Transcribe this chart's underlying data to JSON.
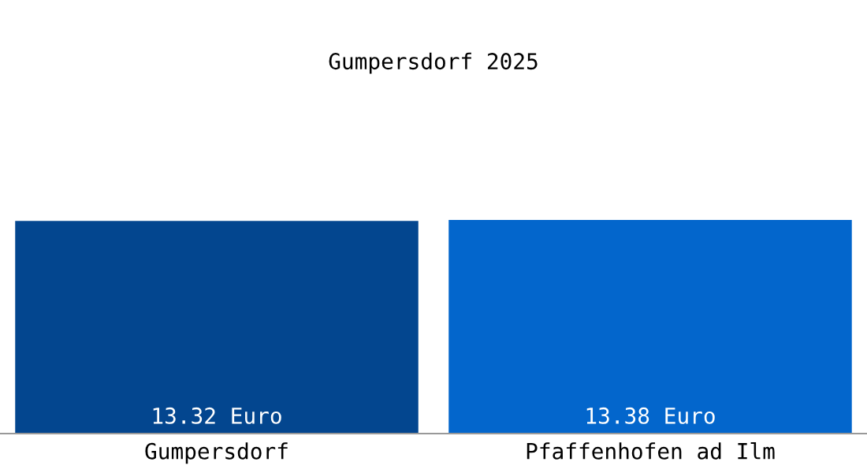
{
  "chart_data": {
    "type": "bar",
    "title": "Gumpersdorf 2025",
    "categories": [
      "Gumpersdorf",
      "Pfaffenhofen ad Ilm"
    ],
    "values": [
      13.32,
      13.38
    ],
    "colors": [
      "#03468f",
      "#0366cc"
    ],
    "value_labels": [
      "13.32 Euro",
      "13.38 Euro"
    ],
    "grid": false,
    "legend": false
  }
}
